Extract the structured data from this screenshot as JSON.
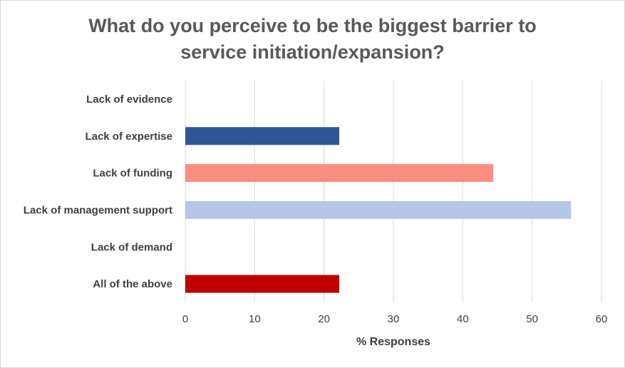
{
  "chart_data": {
    "type": "bar",
    "orientation": "horizontal",
    "title_lines": [
      "What do you perceive to be the biggest barrier to",
      "service initiation/expansion?"
    ],
    "xlabel": "% Responses",
    "ylabel": "",
    "xlim": [
      0,
      60
    ],
    "x_ticks": [
      0,
      10,
      20,
      30,
      40,
      50,
      60
    ],
    "grid": "vertical",
    "legend": "none",
    "categories": [
      "Lack of evidence",
      "Lack of expertise",
      "Lack of funding",
      "Lack of management support",
      "Lack of demand",
      "All of the above"
    ],
    "values": [
      0,
      22.2,
      44.4,
      55.6,
      0,
      22.2
    ],
    "colors": [
      "#2e5597",
      "#2e5597",
      "#ff8c82",
      "#b4c7e7",
      "#b4c7e7",
      "#c00000"
    ]
  }
}
